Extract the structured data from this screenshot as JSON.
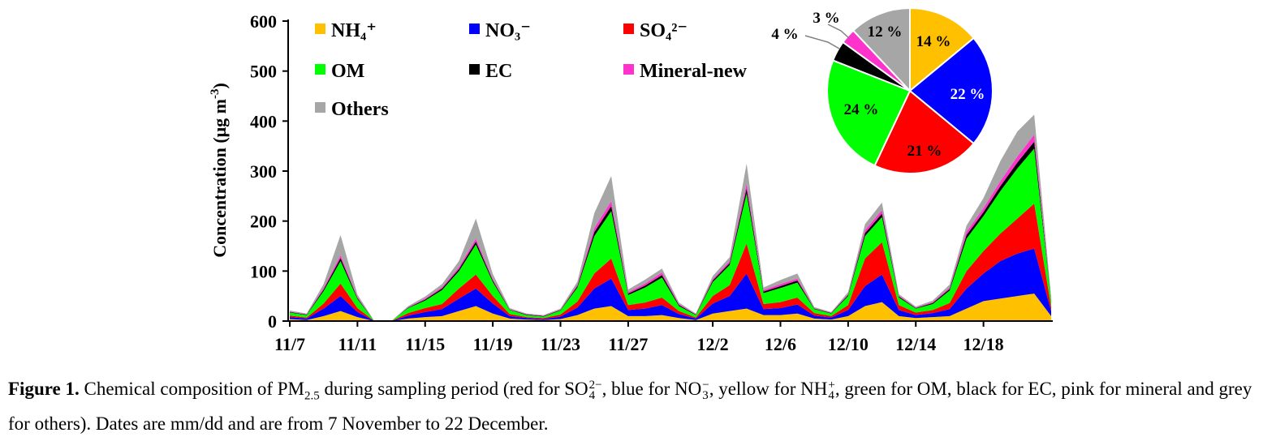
{
  "chart_data": [
    {
      "type": "area",
      "stacked": true,
      "ylabel": "Concentration (μg m⁻³)",
      "ylabel_parts": [
        "Concentration (μg m",
        "-3",
        ")"
      ],
      "ylim": [
        0,
        600
      ],
      "yticks": [
        "0",
        "100",
        "200",
        "300",
        "400",
        "500",
        "600"
      ],
      "xlabel": "",
      "xticks": [
        "11/7",
        "11/11",
        "11/15",
        "11/19",
        "11/23",
        "11/27",
        "12/2",
        "12/6",
        "12/10",
        "12/14",
        "12/18"
      ],
      "x": [
        "11/7",
        "11/8",
        "11/9",
        "11/10",
        "11/11",
        "11/12",
        "11/13",
        "11/14",
        "11/15",
        "11/16",
        "11/17",
        "11/18",
        "11/19",
        "11/20",
        "11/21",
        "11/22",
        "11/23",
        "11/24",
        "11/25",
        "11/26",
        "11/27",
        "11/28",
        "11/29",
        "11/30",
        "12/1",
        "12/2",
        "12/3",
        "12/4",
        "12/5",
        "12/6",
        "12/7",
        "12/8",
        "12/9",
        "12/10",
        "12/11",
        "12/12",
        "12/13",
        "12/14",
        "12/15",
        "12/16",
        "12/17",
        "12/18",
        "12/19",
        "12/20",
        "12/21",
        "12/22"
      ],
      "legend_position": "top-left",
      "series": [
        {
          "name": "NH₄⁺",
          "color": "#ffc000",
          "values": [
            4,
            2,
            10,
            20,
            8,
            0,
            0,
            5,
            8,
            10,
            20,
            30,
            15,
            5,
            3,
            2,
            4,
            12,
            25,
            30,
            10,
            10,
            12,
            6,
            2,
            15,
            20,
            25,
            12,
            12,
            15,
            5,
            3,
            10,
            30,
            38,
            10,
            6,
            8,
            10,
            25,
            40,
            45,
            50,
            55,
            10
          ]
        },
        {
          "name": "NO₃⁻",
          "color": "#0000ff",
          "values": [
            4,
            3,
            15,
            30,
            10,
            0,
            0,
            6,
            10,
            14,
            25,
            35,
            20,
            5,
            3,
            2,
            5,
            15,
            40,
            55,
            12,
            15,
            20,
            8,
            3,
            20,
            30,
            70,
            12,
            14,
            18,
            6,
            4,
            12,
            40,
            55,
            12,
            6,
            8,
            14,
            40,
            55,
            75,
            85,
            90,
            10
          ]
        },
        {
          "name": "SO₄²⁻",
          "color": "#ff0000",
          "values": [
            3,
            2,
            10,
            25,
            8,
            0,
            0,
            5,
            8,
            10,
            20,
            28,
            15,
            4,
            2,
            2,
            4,
            12,
            30,
            40,
            10,
            12,
            15,
            6,
            2,
            15,
            22,
            60,
            10,
            12,
            14,
            5,
            3,
            10,
            55,
            65,
            10,
            5,
            6,
            12,
            35,
            45,
            55,
            70,
            90,
            8
          ]
        },
        {
          "name": "OM",
          "color": "#00ff00",
          "values": [
            6,
            5,
            25,
            45,
            18,
            0,
            0,
            10,
            15,
            28,
            35,
            60,
            28,
            8,
            4,
            3,
            8,
            28,
            75,
            95,
            20,
            30,
            40,
            10,
            5,
            28,
            40,
            100,
            22,
            28,
            30,
            8,
            5,
            18,
            45,
            50,
            15,
            8,
            12,
            25,
            65,
            70,
            85,
            100,
            110,
            12
          ]
        },
        {
          "name": "EC",
          "color": "#000000",
          "values": [
            1,
            1,
            3,
            6,
            2,
            0,
            0,
            1,
            2,
            3,
            4,
            6,
            3,
            1,
            1,
            1,
            1,
            3,
            8,
            10,
            3,
            4,
            5,
            2,
            1,
            3,
            4,
            10,
            3,
            4,
            4,
            1,
            1,
            2,
            6,
            7,
            2,
            1,
            2,
            3,
            7,
            8,
            10,
            12,
            14,
            2
          ]
        },
        {
          "name": "Mineral-new",
          "color": "#ff33cc",
          "values": [
            1,
            1,
            3,
            6,
            2,
            0,
            0,
            1,
            2,
            3,
            4,
            6,
            3,
            1,
            1,
            1,
            1,
            3,
            8,
            10,
            3,
            4,
            5,
            2,
            1,
            3,
            4,
            10,
            3,
            4,
            4,
            1,
            1,
            2,
            6,
            7,
            2,
            1,
            2,
            3,
            7,
            8,
            10,
            12,
            14,
            2
          ]
        },
        {
          "name": "Others",
          "color": "#a6a6a6",
          "values": [
            2,
            1,
            8,
            40,
            5,
            0,
            0,
            2,
            4,
            6,
            12,
            40,
            10,
            2,
            1,
            1,
            2,
            6,
            30,
            50,
            5,
            8,
            8,
            3,
            1,
            6,
            8,
            40,
            5,
            8,
            10,
            2,
            1,
            4,
            12,
            15,
            3,
            2,
            3,
            6,
            12,
            20,
            40,
            50,
            40,
            4
          ]
        }
      ]
    },
    {
      "type": "pie",
      "slices": [
        {
          "name": "NH₄⁺",
          "value": 14,
          "label": "14 %",
          "color": "#ffc000"
        },
        {
          "name": "NO₃⁻",
          "value": 22,
          "label": "22 %",
          "color": "#0000ff"
        },
        {
          "name": "SO₄²⁻",
          "value": 21,
          "label": "21 %",
          "color": "#ff0000"
        },
        {
          "name": "OM",
          "value": 24,
          "label": "24 %",
          "color": "#00ff00"
        },
        {
          "name": "EC",
          "value": 4,
          "label": "4 %",
          "color": "#000000"
        },
        {
          "name": "Mineral-new",
          "value": 3,
          "label": "3 %",
          "color": "#ff33cc"
        },
        {
          "name": "Others",
          "value": 12,
          "label": "12 %",
          "color": "#a6a6a6"
        }
      ]
    }
  ],
  "caption": {
    "lead": "Figure 1.",
    "text_1": " Chemical composition of PM",
    "pm_sub": "2.5",
    "text_2": " during sampling period (red for SO",
    "so4_sup": "2−",
    "so4_sub": "4",
    "text_3": ", blue for NO",
    "no3_sup": "−",
    "no3_sub": "3",
    "text_4": ", yellow for NH",
    "nh4_sup": "+",
    "nh4_sub": "4",
    "text_5": ", green for OM, black for EC, pink for mineral and grey for others). Dates are mm/dd and are from 7 November to 22 December."
  }
}
